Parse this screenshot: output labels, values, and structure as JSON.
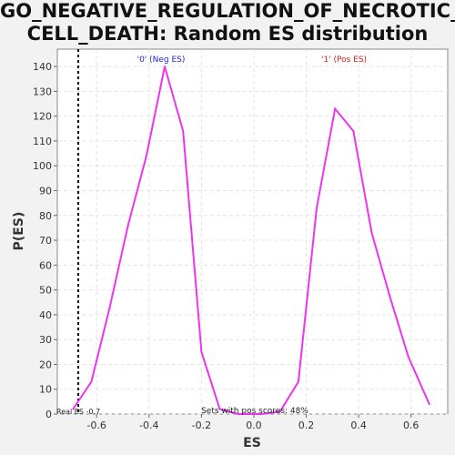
{
  "chart_data": {
    "type": "line",
    "title_lines": [
      "GO_NEGATIVE_REGULATION_OF_NECROTIC_",
      "CELL_DEATH: Random ES distribution"
    ],
    "xlabel": "ES",
    "ylabel": "P(ES)",
    "xlim": [
      -0.75,
      0.74
    ],
    "ylim": [
      0,
      147
    ],
    "x_ticks": [
      -0.6,
      -0.4,
      -0.2,
      0.0,
      0.2,
      0.4,
      0.6
    ],
    "x_tick_labels": [
      "-0.6",
      "-0.4",
      "-0.2",
      "0.0",
      "0.2",
      "0.4",
      "0.6"
    ],
    "y_ticks": [
      0,
      10,
      20,
      30,
      40,
      50,
      60,
      70,
      80,
      90,
      100,
      110,
      120,
      130,
      140
    ],
    "y_tick_labels": [
      "0",
      "10",
      "20",
      "30",
      "40",
      "50",
      "60",
      "70",
      "80",
      "90",
      "100",
      "110",
      "120",
      "130",
      "140"
    ],
    "grid": true,
    "series": [
      {
        "color": "#ee33ee",
        "x": [
          -0.69,
          -0.62,
          -0.55,
          -0.48,
          -0.41,
          -0.34,
          -0.27,
          -0.2,
          -0.13,
          -0.06,
          0.03,
          0.1,
          0.17,
          0.24,
          0.31,
          0.38,
          0.45,
          0.52,
          0.59,
          0.67
        ],
        "y": [
          2,
          13,
          43,
          76,
          104,
          140,
          114,
          25,
          2,
          0,
          0,
          1,
          13,
          83,
          123,
          114,
          73,
          47,
          23,
          4
        ]
      }
    ],
    "real_es": -0.67,
    "annotations": {
      "neg_label": "'0' (Neg ES)",
      "pos_label": "'1' (Pos ES)",
      "real_es_label": "Real ES -0.7",
      "pos_scores_label": "Sets with pos scores: 48%"
    },
    "colors": {
      "neg_label": "#2222cc",
      "pos_label": "#cc2222",
      "line": "#ee33ee"
    }
  }
}
